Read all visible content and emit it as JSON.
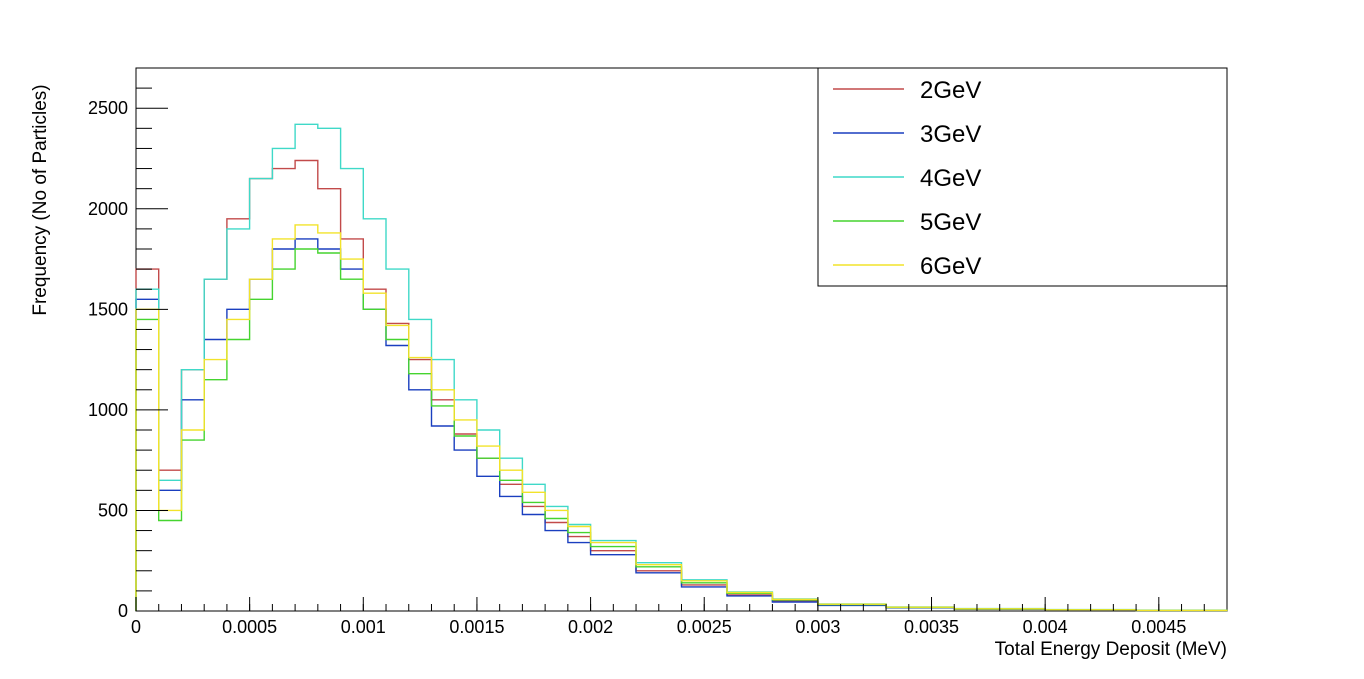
{
  "chart_data": {
    "type": "line",
    "title": "",
    "xlabel": "Total Energy Deposit (MeV)",
    "ylabel": "Frequency (No of Particles)",
    "xlim": [
      0,
      0.0048
    ],
    "ylim": [
      0,
      2700
    ],
    "x_tick_labels": [
      "0",
      "0.0005",
      "0.001",
      "0.0015",
      "0.002",
      "0.0025",
      "0.003",
      "0.0035",
      "0.004",
      "0.0045"
    ],
    "y_tick_labels": [
      "0",
      "500",
      "1000",
      "1500",
      "2000",
      "2500"
    ],
    "grid": false,
    "legend_position": "top-right",
    "x": [
      0,
      0.0001,
      0.0002,
      0.0003,
      0.0004,
      0.0005,
      0.0006,
      0.0007,
      0.0008,
      0.0009,
      0.001,
      0.0011,
      0.0012,
      0.0013,
      0.0014,
      0.0015,
      0.0016,
      0.0017,
      0.0018,
      0.0019,
      0.002,
      0.0022,
      0.0024,
      0.0026,
      0.0028,
      0.003,
      0.0033,
      0.0036,
      0.004,
      0.0044,
      0.0048
    ],
    "series": [
      {
        "name": "2GeV",
        "color": "#c24a4a",
        "values": [
          1700,
          700,
          1200,
          1650,
          1950,
          2150,
          2200,
          2240,
          2100,
          1850,
          1600,
          1430,
          1250,
          1050,
          880,
          760,
          630,
          520,
          440,
          370,
          300,
          200,
          130,
          80,
          50,
          30,
          18,
          10,
          6,
          4,
          2
        ]
      },
      {
        "name": "3GeV",
        "color": "#1a3fbf",
        "values": [
          1550,
          600,
          1050,
          1350,
          1500,
          1650,
          1800,
          1850,
          1800,
          1700,
          1500,
          1320,
          1100,
          920,
          800,
          670,
          570,
          480,
          400,
          340,
          280,
          190,
          120,
          75,
          45,
          28,
          16,
          9,
          5,
          3,
          2
        ]
      },
      {
        "name": "4GeV",
        "color": "#3fd9c8",
        "values": [
          1600,
          650,
          1200,
          1650,
          1900,
          2150,
          2300,
          2420,
          2400,
          2200,
          1950,
          1700,
          1450,
          1250,
          1050,
          900,
          760,
          630,
          520,
          430,
          350,
          240,
          155,
          95,
          60,
          35,
          20,
          12,
          7,
          4,
          2
        ]
      },
      {
        "name": "5GeV",
        "color": "#45d42f",
        "values": [
          1450,
          450,
          850,
          1150,
          1350,
          1550,
          1700,
          1800,
          1780,
          1650,
          1500,
          1350,
          1180,
          1020,
          870,
          760,
          650,
          540,
          460,
          390,
          320,
          220,
          140,
          88,
          55,
          32,
          18,
          10,
          6,
          3,
          2
        ]
      },
      {
        "name": "6GeV",
        "color": "#f2e32a",
        "values": [
          1500,
          500,
          900,
          1250,
          1450,
          1650,
          1850,
          1920,
          1880,
          1750,
          1580,
          1420,
          1260,
          1100,
          950,
          820,
          700,
          590,
          500,
          420,
          340,
          230,
          150,
          92,
          58,
          34,
          19,
          11,
          6,
          3,
          2
        ]
      }
    ]
  }
}
